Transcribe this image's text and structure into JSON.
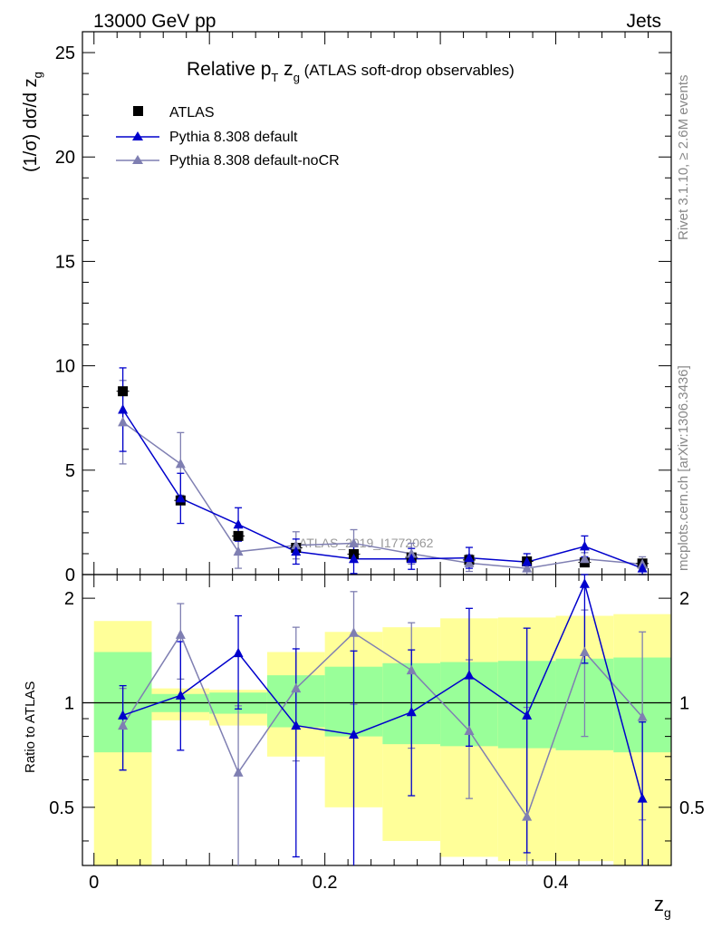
{
  "header": {
    "left": "13000 GeV pp",
    "right": "Jets"
  },
  "side_labels": {
    "rivet": "Rivet 3.1.10, ≥ 2.6M events",
    "mcplots": "mcplots.cern.ch [arXiv:1306.3436]"
  },
  "title": {
    "main_a": "Relative p",
    "main_sub_t": "T",
    "main_b": " z",
    "main_sub_g": "g",
    "small": " (ATLAS soft-drop observables)"
  },
  "watermark": "ATLAS_2019_I1772062",
  "legend": [
    {
      "label": "ATLAS",
      "marker": "square",
      "color": "#000000"
    },
    {
      "label": "Pythia 8.308 default",
      "marker": "triangle",
      "color": "#0000cc"
    },
    {
      "label": "Pythia 8.308 default-noCR",
      "marker": "triangle",
      "color": "#7f7fb2"
    }
  ],
  "colors": {
    "atlas": "#000000",
    "default": "#0000cc",
    "nocr": "#7f7fb2",
    "band_inner": "#99ff99",
    "band_outer": "#ffff99"
  },
  "chart_data": [
    {
      "type": "line",
      "ylabel_a": "(1/σ) dσ/d z",
      "ylabel_sub": "g",
      "xlim": [
        -0.01,
        0.5
      ],
      "ylim": [
        0,
        26
      ],
      "yticks": [
        0,
        5,
        10,
        15,
        20,
        25
      ],
      "x": [
        0.025,
        0.075,
        0.125,
        0.175,
        0.225,
        0.275,
        0.325,
        0.375,
        0.425,
        0.475
      ],
      "series": [
        {
          "name": "ATLAS",
          "values": [
            8.78,
            3.55,
            1.85,
            1.28,
            0.98,
            0.82,
            0.7,
            0.63,
            0.58,
            0.53
          ]
        },
        {
          "name": "Pythia 8.308 default",
          "values": [
            7.9,
            3.65,
            2.4,
            1.1,
            0.75,
            0.75,
            0.8,
            0.6,
            1.35,
            0.3
          ],
          "err": [
            2.0,
            1.2,
            0.8,
            0.6,
            0.7,
            0.5,
            0.5,
            0.4,
            0.5,
            0.35
          ]
        },
        {
          "name": "Pythia 8.308 default-noCR",
          "values": [
            7.3,
            5.3,
            1.1,
            1.4,
            1.5,
            1.0,
            0.55,
            0.3,
            0.75,
            0.5
          ],
          "err": [
            2.0,
            1.5,
            0.8,
            0.65,
            0.65,
            0.5,
            0.4,
            0.35,
            0.3,
            0.35
          ]
        }
      ]
    },
    {
      "type": "line",
      "ylabel": "Ratio to ATLAS",
      "xlabel_a": "z",
      "xlabel_sub": "g",
      "xlim": [
        -0.01,
        0.5
      ],
      "ylim": [
        0.34,
        2.34
      ],
      "yticks": [
        0.5,
        1,
        2
      ],
      "xticks": [
        0,
        0.2,
        0.4
      ],
      "bins": [
        [
          0.0,
          0.05
        ],
        [
          0.05,
          0.1
        ],
        [
          0.1,
          0.15
        ],
        [
          0.15,
          0.2
        ],
        [
          0.2,
          0.25
        ],
        [
          0.25,
          0.3
        ],
        [
          0.3,
          0.35
        ],
        [
          0.35,
          0.4
        ],
        [
          0.4,
          0.45
        ],
        [
          0.45,
          0.5
        ]
      ],
      "band_inner": [
        [
          0.72,
          1.4
        ],
        [
          0.94,
          1.06
        ],
        [
          0.93,
          1.07
        ],
        [
          0.85,
          1.2
        ],
        [
          0.8,
          1.27
        ],
        [
          0.76,
          1.3
        ],
        [
          0.75,
          1.31
        ],
        [
          0.74,
          1.32
        ],
        [
          0.73,
          1.34
        ],
        [
          0.72,
          1.35
        ]
      ],
      "band_outer": [
        [
          0.3,
          1.72
        ],
        [
          0.89,
          1.1
        ],
        [
          0.86,
          1.09
        ],
        [
          0.7,
          1.4
        ],
        [
          0.5,
          1.6
        ],
        [
          0.4,
          1.65
        ],
        [
          0.36,
          1.75
        ],
        [
          0.35,
          1.76
        ],
        [
          0.35,
          1.78
        ],
        [
          0.34,
          1.8
        ]
      ],
      "x": [
        0.025,
        0.075,
        0.125,
        0.175,
        0.225,
        0.275,
        0.325,
        0.375,
        0.425,
        0.475
      ],
      "series": [
        {
          "name": "Pythia 8.308 default",
          "values": [
            0.92,
            1.05,
            1.39,
            0.86,
            0.81,
            0.94,
            1.2,
            0.92,
            2.2,
            0.53
          ],
          "err_lo": [
            0.28,
            0.32,
            0.43,
            0.5,
            0.5,
            0.4,
            0.45,
            0.55,
            0.9,
            0.3
          ],
          "err_hi": [
            0.2,
            0.45,
            0.39,
            0.57,
            0.6,
            0.48,
            0.67,
            0.72,
            0.7,
            0.35
          ]
        },
        {
          "name": "Pythia 8.308 default-noCR",
          "values": [
            0.86,
            1.57,
            0.63,
            1.1,
            1.59,
            1.24,
            0.83,
            0.47,
            1.4,
            0.91
          ],
          "err_lo": [
            0.22,
            0.4,
            0.3,
            0.42,
            0.6,
            0.5,
            0.3,
            0.13,
            0.6,
            0.45
          ],
          "err_hi": [
            0.24,
            0.36,
            0.35,
            0.55,
            0.5,
            0.46,
            0.5,
            0.5,
            0.45,
            0.69
          ]
        }
      ]
    }
  ]
}
